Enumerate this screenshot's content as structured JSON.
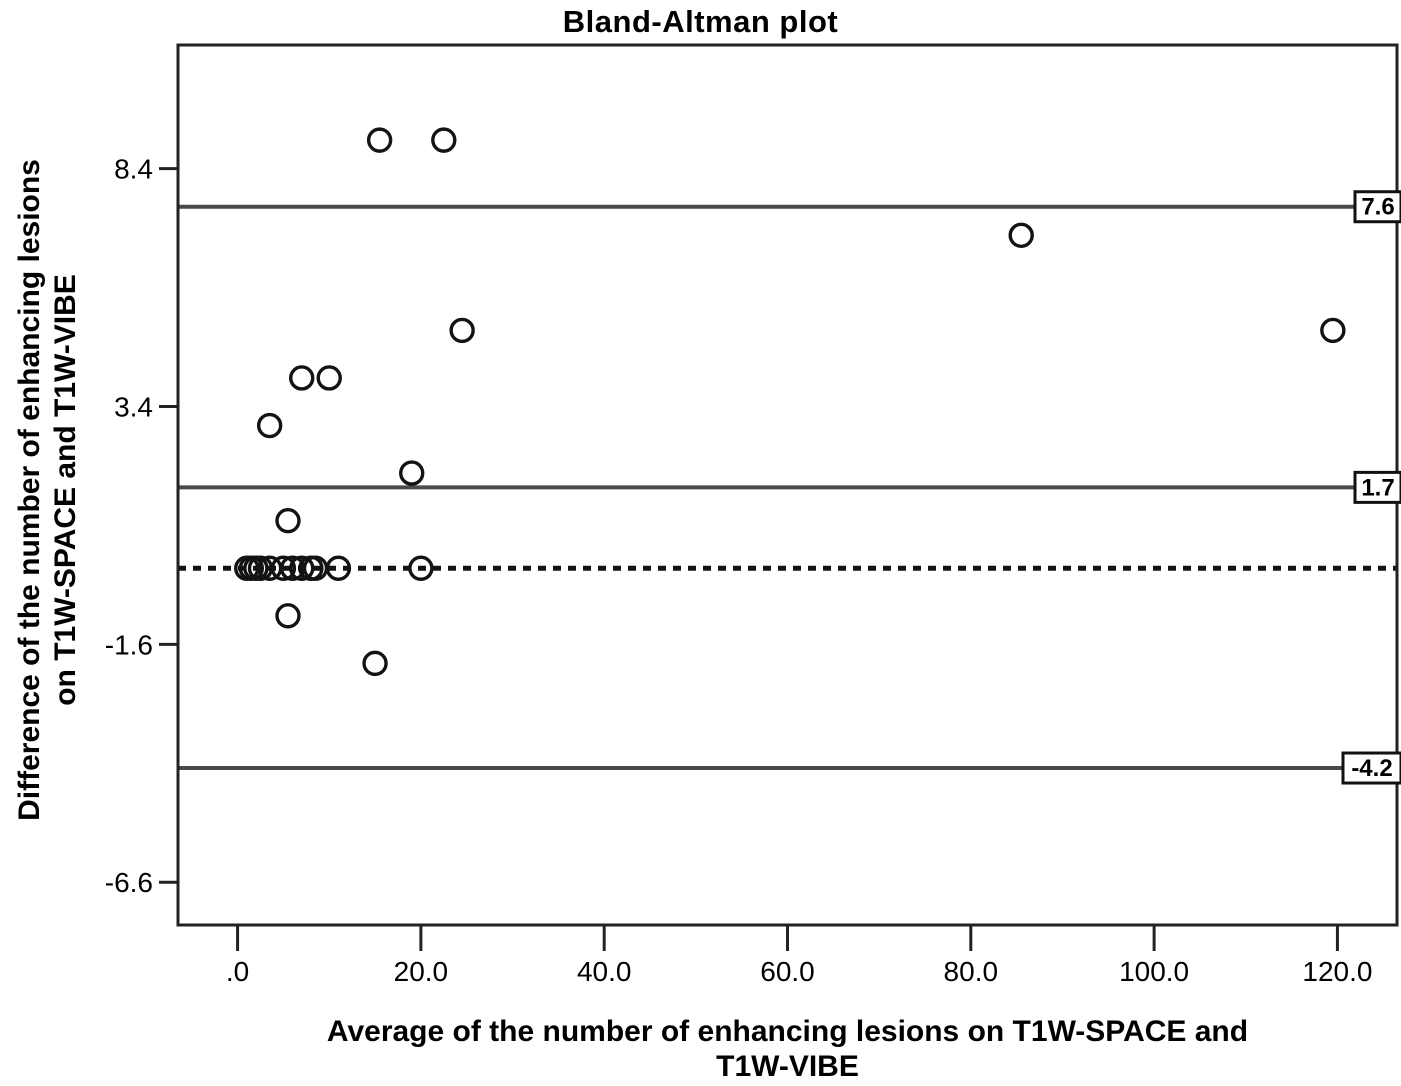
{
  "figure": {
    "title": "Bland-Altman plot"
  },
  "chart_data": {
    "type": "scatter",
    "title": "Bland-Altman plot",
    "xlabel_lines": [
      "Average of the number of enhancing lesions on T1W-SPACE and",
      "T1W-VIBE"
    ],
    "ylabel_lines": [
      "Difference of the number of enhancing lesions",
      "on T1W-SPACE and T1W-VIBE"
    ],
    "xlim": [
      -6.5,
      126.5
    ],
    "ylim": [
      -7.5,
      11.0
    ],
    "grid": false,
    "legend": "none",
    "marker_style": "open-circle",
    "x_ticks": [
      {
        "value": 0,
        "label": ".0"
      },
      {
        "value": 20,
        "label": "20.0"
      },
      {
        "value": 40,
        "label": "40.0"
      },
      {
        "value": 60,
        "label": "60.0"
      },
      {
        "value": 80,
        "label": "80.0"
      },
      {
        "value": 100,
        "label": "100.0"
      },
      {
        "value": 120,
        "label": "120.0"
      }
    ],
    "y_ticks": [
      {
        "value": 8.4,
        "label": "8.4"
      },
      {
        "value": 3.4,
        "label": "3.4"
      },
      {
        "value": -1.6,
        "label": "-1.6"
      },
      {
        "value": -6.6,
        "label": "-6.6"
      }
    ],
    "reference_lines": [
      {
        "name": "upper-limit-line",
        "value": 7.6,
        "label": "7.6",
        "style": "solid"
      },
      {
        "name": "mean-line",
        "value": 1.7,
        "label": "1.7",
        "style": "solid"
      },
      {
        "name": "lower-limit-line",
        "value": -4.2,
        "label": "-4.2",
        "style": "solid"
      },
      {
        "name": "zero-line",
        "value": 0,
        "label": "",
        "style": "dotted"
      }
    ],
    "points": [
      [
        15.5,
        9.0
      ],
      [
        22.5,
        9.0
      ],
      [
        85.5,
        7.0
      ],
      [
        24.5,
        5.0
      ],
      [
        119.5,
        5.0
      ],
      [
        7.0,
        4.0
      ],
      [
        10.0,
        4.0
      ],
      [
        3.5,
        3.0
      ],
      [
        19.0,
        2.0
      ],
      [
        5.5,
        1.0
      ],
      [
        1.0,
        0.0
      ],
      [
        1.5,
        0.0
      ],
      [
        2.0,
        0.0
      ],
      [
        2.5,
        0.0
      ],
      [
        3.5,
        0.0
      ],
      [
        5.0,
        0.0
      ],
      [
        6.0,
        0.0
      ],
      [
        7.0,
        0.0
      ],
      [
        8.0,
        0.0
      ],
      [
        8.5,
        0.0
      ],
      [
        11.0,
        0.0
      ],
      [
        20.0,
        0.0
      ],
      [
        5.5,
        -1.0
      ],
      [
        15.0,
        -2.0
      ]
    ],
    "colors": {
      "background": "#ffffff",
      "frame": "#222222",
      "reference_line": "#4a4a4a",
      "zero_line": "#131313",
      "marker": "#131313",
      "text": "#000000",
      "label_box_fill": "#ffffff",
      "label_box_border": "#111111"
    }
  }
}
